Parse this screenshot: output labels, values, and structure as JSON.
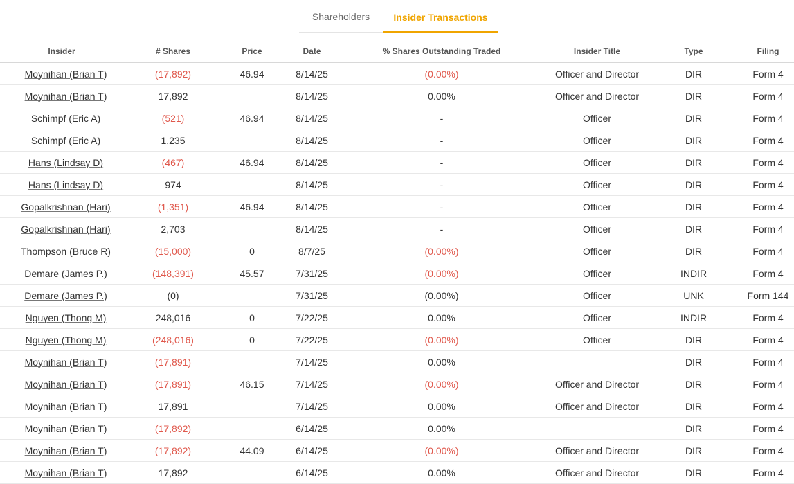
{
  "tabs": [
    {
      "label": "Shareholders",
      "active": false
    },
    {
      "label": "Insider Transactions",
      "active": true
    }
  ],
  "colors": {
    "accent": "#f0a500",
    "negative": "#e0584c",
    "text": "#333333"
  },
  "table": {
    "headers": {
      "insider": "Insider",
      "shares": "# Shares",
      "price": "Price",
      "date": "Date",
      "pct": "% Shares Outstanding Traded",
      "title": "Insider Title",
      "type": "Type",
      "filing": "Filing"
    },
    "rows": [
      {
        "insider": "Moynihan (Brian T)",
        "shares": "(17,892)",
        "shares_neg": true,
        "price": "46.94",
        "date": "8/14/25",
        "pct": "(0.00%)",
        "pct_neg": true,
        "title": "Officer and Director",
        "type": "DIR",
        "filing": "Form 4"
      },
      {
        "insider": "Moynihan (Brian T)",
        "shares": "17,892",
        "shares_neg": false,
        "price": "",
        "date": "8/14/25",
        "pct": "0.00%",
        "pct_neg": false,
        "title": "Officer and Director",
        "type": "DIR",
        "filing": "Form 4"
      },
      {
        "insider": "Schimpf (Eric A)",
        "shares": "(521)",
        "shares_neg": true,
        "price": "46.94",
        "date": "8/14/25",
        "pct": "-",
        "pct_neg": false,
        "title": "Officer",
        "type": "DIR",
        "filing": "Form 4"
      },
      {
        "insider": "Schimpf (Eric A)",
        "shares": "1,235",
        "shares_neg": false,
        "price": "",
        "date": "8/14/25",
        "pct": "-",
        "pct_neg": false,
        "title": "Officer",
        "type": "DIR",
        "filing": "Form 4"
      },
      {
        "insider": "Hans (Lindsay D)",
        "shares": "(467)",
        "shares_neg": true,
        "price": "46.94",
        "date": "8/14/25",
        "pct": "-",
        "pct_neg": false,
        "title": "Officer",
        "type": "DIR",
        "filing": "Form 4"
      },
      {
        "insider": "Hans (Lindsay D)",
        "shares": "974",
        "shares_neg": false,
        "price": "",
        "date": "8/14/25",
        "pct": "-",
        "pct_neg": false,
        "title": "Officer",
        "type": "DIR",
        "filing": "Form 4"
      },
      {
        "insider": "Gopalkrishnan (Hari)",
        "shares": "(1,351)",
        "shares_neg": true,
        "price": "46.94",
        "date": "8/14/25",
        "pct": "-",
        "pct_neg": false,
        "title": "Officer",
        "type": "DIR",
        "filing": "Form 4"
      },
      {
        "insider": "Gopalkrishnan (Hari)",
        "shares": "2,703",
        "shares_neg": false,
        "price": "",
        "date": "8/14/25",
        "pct": "-",
        "pct_neg": false,
        "title": "Officer",
        "type": "DIR",
        "filing": "Form 4"
      },
      {
        "insider": "Thompson (Bruce R)",
        "shares": "(15,000)",
        "shares_neg": true,
        "price": "0",
        "date": "8/7/25",
        "pct": "(0.00%)",
        "pct_neg": true,
        "title": "Officer",
        "type": "DIR",
        "filing": "Form 4"
      },
      {
        "insider": "Demare (James P.)",
        "shares": "(148,391)",
        "shares_neg": true,
        "price": "45.57",
        "date": "7/31/25",
        "pct": "(0.00%)",
        "pct_neg": true,
        "title": "Officer",
        "type": "INDIR",
        "filing": "Form 4"
      },
      {
        "insider": "Demare (James P.)",
        "shares": "(0)",
        "shares_neg": false,
        "price": "",
        "date": "7/31/25",
        "pct": "(0.00%)",
        "pct_neg": false,
        "title": "Officer",
        "type": "UNK",
        "filing": "Form 144"
      },
      {
        "insider": "Nguyen (Thong M)",
        "shares": "248,016",
        "shares_neg": false,
        "price": "0",
        "date": "7/22/25",
        "pct": "0.00%",
        "pct_neg": false,
        "title": "Officer",
        "type": "INDIR",
        "filing": "Form 4"
      },
      {
        "insider": "Nguyen (Thong M)",
        "shares": "(248,016)",
        "shares_neg": true,
        "price": "0",
        "date": "7/22/25",
        "pct": "(0.00%)",
        "pct_neg": true,
        "title": "Officer",
        "type": "DIR",
        "filing": "Form 4"
      },
      {
        "insider": "Moynihan (Brian T)",
        "shares": "(17,891)",
        "shares_neg": true,
        "price": "",
        "date": "7/14/25",
        "pct": "0.00%",
        "pct_neg": false,
        "title": "",
        "type": "DIR",
        "filing": "Form 4"
      },
      {
        "insider": "Moynihan (Brian T)",
        "shares": "(17,891)",
        "shares_neg": true,
        "price": "46.15",
        "date": "7/14/25",
        "pct": "(0.00%)",
        "pct_neg": true,
        "title": "Officer and Director",
        "type": "DIR",
        "filing": "Form 4"
      },
      {
        "insider": "Moynihan (Brian T)",
        "shares": "17,891",
        "shares_neg": false,
        "price": "",
        "date": "7/14/25",
        "pct": "0.00%",
        "pct_neg": false,
        "title": "Officer and Director",
        "type": "DIR",
        "filing": "Form 4"
      },
      {
        "insider": "Moynihan (Brian T)",
        "shares": "(17,892)",
        "shares_neg": true,
        "price": "",
        "date": "6/14/25",
        "pct": "0.00%",
        "pct_neg": false,
        "title": "",
        "type": "DIR",
        "filing": "Form 4"
      },
      {
        "insider": "Moynihan (Brian T)",
        "shares": "(17,892)",
        "shares_neg": true,
        "price": "44.09",
        "date": "6/14/25",
        "pct": "(0.00%)",
        "pct_neg": true,
        "title": "Officer and Director",
        "type": "DIR",
        "filing": "Form 4"
      },
      {
        "insider": "Moynihan (Brian T)",
        "shares": "17,892",
        "shares_neg": false,
        "price": "",
        "date": "6/14/25",
        "pct": "0.00%",
        "pct_neg": false,
        "title": "Officer and Director",
        "type": "DIR",
        "filing": "Form 4"
      }
    ]
  }
}
